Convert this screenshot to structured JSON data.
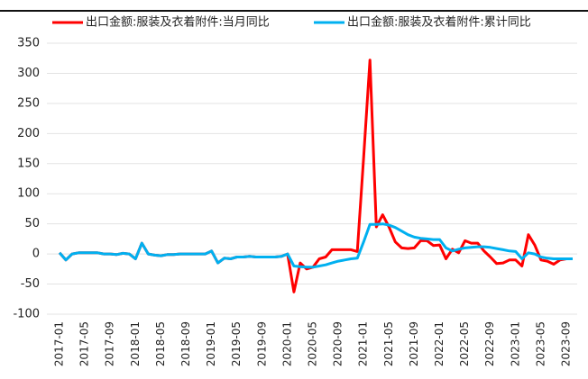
{
  "chart_data": {
    "type": "line",
    "categories": [
      "2017-01",
      null,
      null,
      null,
      "2017-05",
      null,
      null,
      null,
      "2017-09",
      null,
      null,
      null,
      "2018-01",
      null,
      null,
      null,
      "2018-05",
      null,
      null,
      null,
      "2018-09",
      null,
      null,
      null,
      "2019-01",
      null,
      null,
      null,
      "2019-05",
      null,
      null,
      null,
      "2019-09",
      null,
      null,
      null,
      "2020-01",
      null,
      null,
      null,
      "2020-05",
      null,
      null,
      null,
      "2020-09",
      null,
      null,
      null,
      "2021-01",
      null,
      null,
      null,
      "2021-05",
      null,
      null,
      null,
      "2021-09",
      null,
      null,
      null,
      "2022-01",
      null,
      null,
      null,
      "2022-05",
      null,
      null,
      null,
      "2022-09",
      null,
      null,
      null,
      "2023-01",
      null,
      null,
      null,
      "2023-05",
      null,
      null,
      null,
      "2023-09",
      null
    ],
    "series": [
      {
        "name": "出口金额:服装及衣着附件:当月同比",
        "color": "#ff0000",
        "values": [
          2,
          -10,
          0,
          2,
          2,
          2,
          2,
          0,
          0,
          -1,
          1,
          0,
          -8,
          18,
          0,
          -2,
          -3,
          -1,
          -1,
          0,
          0,
          0,
          0,
          0,
          5,
          -15,
          -7,
          -8,
          -5,
          -5,
          -4,
          -5,
          -5,
          -5,
          -5,
          -4,
          0,
          -63,
          -15,
          -25,
          -22,
          -8,
          -5,
          7,
          7,
          7,
          7,
          4,
          160,
          322,
          45,
          65,
          45,
          20,
          10,
          9,
          10,
          22,
          22,
          14,
          15,
          -8,
          8,
          2,
          22,
          18,
          18,
          5,
          -5,
          -16,
          -15,
          -10,
          -10,
          -20,
          32,
          15,
          -10,
          -12,
          -17,
          -10,
          -8,
          -8
        ]
      },
      {
        "name": "出口金额:服装及衣着附件:累计同比",
        "color": "#00b0f0",
        "values": [
          2,
          -10,
          0,
          2,
          2,
          2,
          2,
          0,
          0,
          -1,
          1,
          0,
          -8,
          18,
          0,
          -2,
          -3,
          -1,
          -1,
          0,
          0,
          0,
          0,
          0,
          5,
          -15,
          -7,
          -8,
          -5,
          -5,
          -4,
          -5,
          -5,
          -5,
          -5,
          -4,
          0,
          -20,
          -21,
          -22,
          -22,
          -20,
          -18,
          -15,
          -12,
          -10,
          -8,
          -7,
          20,
          49,
          49,
          50,
          48,
          44,
          38,
          32,
          28,
          26,
          25,
          24,
          24,
          10,
          5,
          8,
          10,
          11,
          12,
          12,
          11,
          9,
          7,
          5,
          4,
          -8,
          2,
          0,
          -5,
          -7,
          -8,
          -8,
          -8,
          -8
        ]
      }
    ],
    "ylim": [
      -100,
      350
    ],
    "yticks": [
      -100,
      -50,
      0,
      50,
      100,
      150,
      200,
      250,
      300,
      350
    ],
    "grid": true,
    "legend": "top"
  }
}
